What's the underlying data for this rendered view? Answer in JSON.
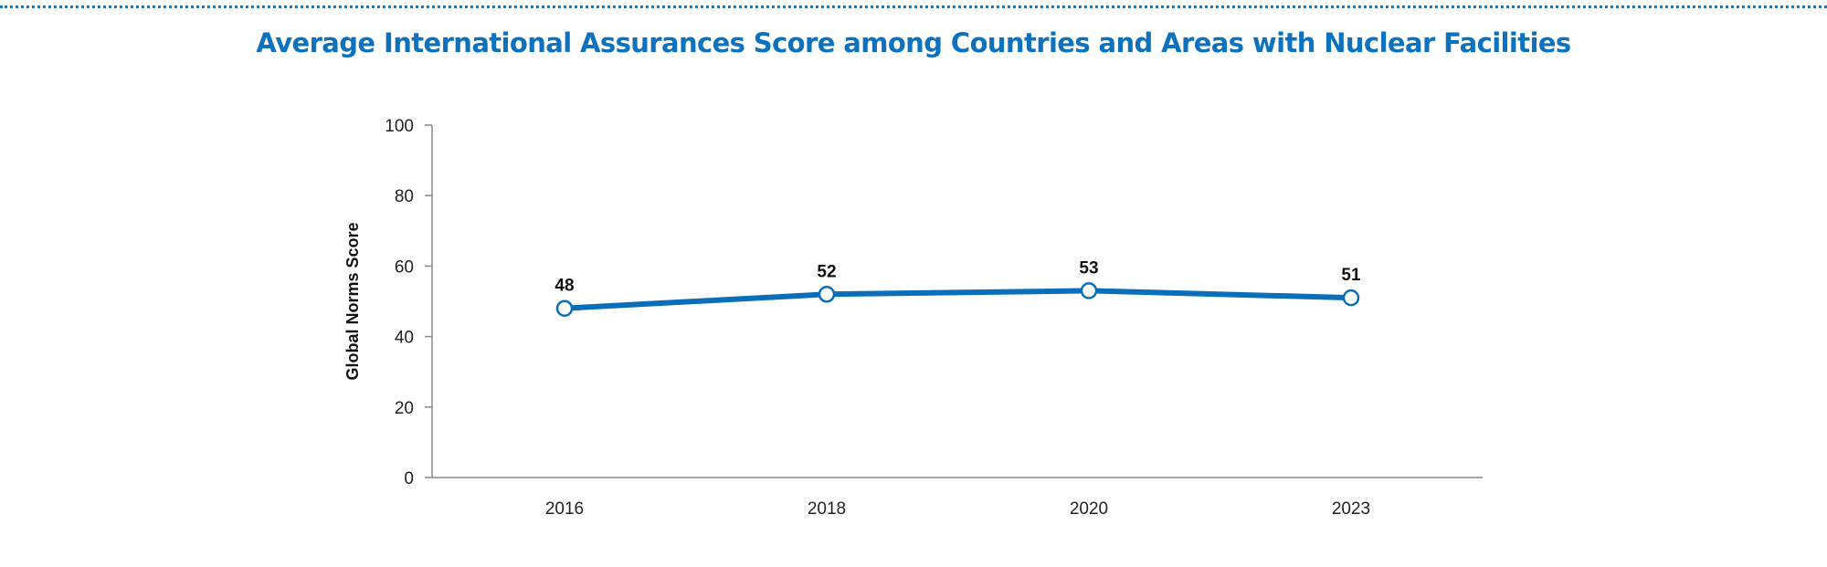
{
  "chart_data": {
    "type": "line",
    "title": "Average International Assurances Score among Countries and Areas with Nuclear Facilities",
    "xlabel": "",
    "ylabel": "Global Norms Score",
    "categories": [
      "2016",
      "2018",
      "2020",
      "2023"
    ],
    "series": [
      {
        "values": [
          48,
          52,
          53,
          51
        ],
        "labels": [
          "48",
          "52",
          "53",
          "51"
        ]
      }
    ],
    "ylim": [
      0,
      100
    ],
    "yticks": [
      0,
      20,
      40,
      60,
      80,
      100
    ],
    "ytick_labels": [
      "0",
      "20",
      "40",
      "60",
      "80",
      "100"
    ],
    "grid": false,
    "legend": "none",
    "colors": {
      "title": "#0d72bd",
      "line": "#0a6fb8",
      "marker_fill": "#ffffff",
      "axis": "#888888"
    }
  }
}
